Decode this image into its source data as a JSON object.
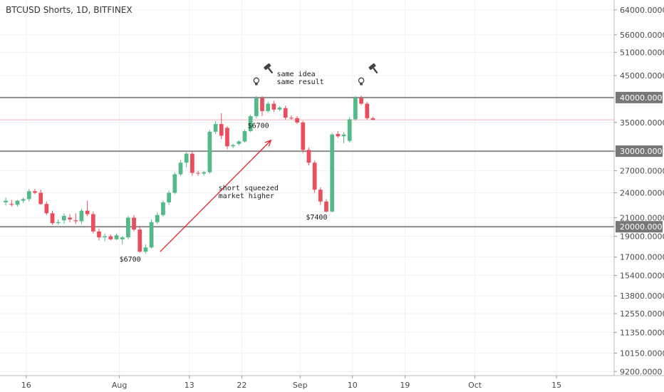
{
  "header": {
    "title": "BTCUSD Shorts, 1D, BITFINEX"
  },
  "colors": {
    "up": "#53b987",
    "down": "#eb4d5c",
    "level_line": "#8c8c8c",
    "price_line": "#f4b0b6",
    "arrow": "#e8252a",
    "badge_bg": "#777777",
    "icon": "#444444"
  },
  "chart_data": {
    "type": "candlestick",
    "y_scale": "log",
    "ylim": [
      9000,
      67500
    ],
    "y_ticks": [
      "64000.0000",
      "56000.0000",
      "51000.0000",
      "45000.0000",
      "35000.0000",
      "30000.0000",
      "27000.0000",
      "24000.0000",
      "21000.0000",
      "19000.0000",
      "17000.0000",
      "15400.0000",
      "13800.0000",
      "12550.0000",
      "11350.0000",
      "10150.0000",
      "9200.0000"
    ],
    "x_ticks": [
      {
        "label": "16",
        "date": "2021-07-16"
      },
      {
        "label": "Aug",
        "date": "2021-08-01"
      },
      {
        "label": "13",
        "date": "2021-08-13"
      },
      {
        "label": "22",
        "date": "2021-08-22"
      },
      {
        "label": "Sep",
        "date": "2021-09-01"
      },
      {
        "label": "10",
        "date": "2021-09-10"
      },
      {
        "label": "19",
        "date": "2021-09-19"
      },
      {
        "label": "Oct",
        "date": "2021-10-01"
      },
      {
        "label": "15",
        "date": "2021-10-15"
      }
    ],
    "x_range": [
      "2021-07-12",
      "2021-10-20"
    ],
    "levels": [
      {
        "value": 40000,
        "label": "40000.0000"
      },
      {
        "value": 30000,
        "label": "30000.0000"
      },
      {
        "value": 20000,
        "label": "20000.0000"
      }
    ],
    "last_price": 35500,
    "candles": [
      {
        "date": "2021-07-12",
        "open": 22800,
        "high": 23400,
        "low": 22400,
        "close": 23000
      },
      {
        "date": "2021-07-13",
        "open": 22600,
        "high": 23100,
        "low": 22300,
        "close": 22500
      },
      {
        "date": "2021-07-14",
        "open": 22500,
        "high": 23100,
        "low": 22300,
        "close": 23000
      },
      {
        "date": "2021-07-15",
        "open": 23000,
        "high": 23400,
        "low": 22700,
        "close": 23200
      },
      {
        "date": "2021-07-16",
        "open": 23200,
        "high": 24500,
        "low": 22900,
        "close": 24200
      },
      {
        "date": "2021-07-17",
        "open": 24200,
        "high": 24500,
        "low": 23800,
        "close": 24000
      },
      {
        "date": "2021-07-18",
        "open": 24000,
        "high": 24400,
        "low": 22500,
        "close": 22600
      },
      {
        "date": "2021-07-19",
        "open": 22600,
        "high": 22900,
        "low": 21300,
        "close": 21500
      },
      {
        "date": "2021-07-20",
        "open": 21500,
        "high": 21800,
        "low": 20200,
        "close": 20400
      },
      {
        "date": "2021-07-21",
        "open": 20400,
        "high": 20800,
        "low": 20200,
        "close": 20500
      },
      {
        "date": "2021-07-22",
        "open": 20700,
        "high": 21500,
        "low": 20300,
        "close": 21200
      },
      {
        "date": "2021-07-23",
        "open": 21000,
        "high": 21400,
        "low": 20500,
        "close": 20800
      },
      {
        "date": "2021-07-24",
        "open": 20700,
        "high": 21500,
        "low": 20300,
        "close": 20600
      },
      {
        "date": "2021-07-25",
        "open": 20600,
        "high": 22000,
        "low": 20300,
        "close": 21800
      },
      {
        "date": "2021-07-26",
        "open": 21800,
        "high": 23000,
        "low": 21200,
        "close": 21400
      },
      {
        "date": "2021-07-27",
        "open": 21400,
        "high": 21700,
        "low": 19300,
        "close": 19500
      },
      {
        "date": "2021-07-28",
        "open": 19500,
        "high": 19800,
        "low": 18600,
        "close": 18900
      },
      {
        "date": "2021-07-29",
        "open": 18900,
        "high": 19300,
        "low": 18500,
        "close": 19000
      },
      {
        "date": "2021-07-30",
        "open": 19000,
        "high": 19200,
        "low": 18600,
        "close": 18700
      },
      {
        "date": "2021-07-31",
        "open": 18700,
        "high": 19300,
        "low": 18600,
        "close": 19100
      },
      {
        "date": "2021-08-01",
        "open": 18700,
        "high": 19000,
        "low": 18200,
        "close": 18900
      },
      {
        "date": "2021-08-02",
        "open": 18900,
        "high": 21200,
        "low": 18700,
        "close": 21000
      },
      {
        "date": "2021-08-03",
        "open": 21000,
        "high": 21300,
        "low": 19500,
        "close": 19700
      },
      {
        "date": "2021-08-04",
        "open": 19700,
        "high": 20100,
        "low": 17400,
        "close": 17500
      },
      {
        "date": "2021-08-05",
        "open": 17500,
        "high": 18200,
        "low": 17300,
        "close": 17900
      },
      {
        "date": "2021-08-06",
        "open": 17900,
        "high": 20800,
        "low": 17800,
        "close": 20500
      },
      {
        "date": "2021-08-07",
        "open": 20500,
        "high": 21600,
        "low": 20300,
        "close": 21300
      },
      {
        "date": "2021-08-08",
        "open": 21300,
        "high": 23000,
        "low": 21100,
        "close": 22800
      },
      {
        "date": "2021-08-09",
        "open": 22800,
        "high": 24300,
        "low": 22500,
        "close": 24000
      },
      {
        "date": "2021-08-10",
        "open": 24000,
        "high": 26800,
        "low": 23800,
        "close": 26500
      },
      {
        "date": "2021-08-11",
        "open": 26500,
        "high": 28600,
        "low": 26300,
        "close": 28200
      },
      {
        "date": "2021-08-12",
        "open": 28200,
        "high": 29800,
        "low": 27500,
        "close": 29600
      },
      {
        "date": "2021-08-13",
        "open": 29600,
        "high": 29900,
        "low": 26300,
        "close": 26700
      },
      {
        "date": "2021-08-14",
        "open": 26700,
        "high": 27000,
        "low": 26300,
        "close": 26600
      },
      {
        "date": "2021-08-15",
        "open": 26600,
        "high": 27000,
        "low": 26300,
        "close": 26800
      },
      {
        "date": "2021-08-16",
        "open": 26800,
        "high": 33600,
        "low": 26600,
        "close": 33300
      },
      {
        "date": "2021-08-17",
        "open": 33300,
        "high": 35300,
        "low": 32900,
        "close": 34700
      },
      {
        "date": "2021-08-18",
        "open": 34700,
        "high": 36800,
        "low": 32000,
        "close": 32600
      },
      {
        "date": "2021-08-19",
        "open": 34000,
        "high": 34300,
        "low": 30300,
        "close": 30800
      },
      {
        "date": "2021-08-20",
        "open": 30800,
        "high": 31200,
        "low": 30500,
        "close": 31000
      },
      {
        "date": "2021-08-21",
        "open": 31200,
        "high": 31800,
        "low": 30900,
        "close": 31600
      },
      {
        "date": "2021-08-22",
        "open": 31600,
        "high": 33700,
        "low": 31400,
        "close": 33400
      },
      {
        "date": "2021-08-23",
        "open": 33400,
        "high": 36500,
        "low": 33200,
        "close": 36200
      },
      {
        "date": "2021-08-24",
        "open": 36200,
        "high": 40300,
        "low": 35800,
        "close": 39900
      },
      {
        "date": "2021-08-25",
        "open": 39900,
        "high": 40300,
        "low": 36200,
        "close": 37200
      },
      {
        "date": "2021-08-26",
        "open": 37200,
        "high": 39100,
        "low": 36900,
        "close": 38700
      },
      {
        "date": "2021-08-27",
        "open": 38700,
        "high": 39300,
        "low": 37000,
        "close": 37500
      },
      {
        "date": "2021-08-28",
        "open": 37500,
        "high": 38200,
        "low": 37200,
        "close": 37900
      },
      {
        "date": "2021-08-29",
        "open": 37800,
        "high": 38300,
        "low": 35500,
        "close": 35900
      },
      {
        "date": "2021-08-30",
        "open": 35900,
        "high": 36300,
        "low": 35500,
        "close": 35800
      },
      {
        "date": "2021-08-31",
        "open": 35800,
        "high": 36200,
        "low": 34700,
        "close": 35000
      },
      {
        "date": "2021-09-01",
        "open": 35000,
        "high": 35300,
        "low": 29700,
        "close": 30200
      },
      {
        "date": "2021-09-02",
        "open": 30200,
        "high": 30600,
        "low": 27800,
        "close": 28200
      },
      {
        "date": "2021-09-03",
        "open": 28200,
        "high": 28500,
        "low": 24000,
        "close": 24400
      },
      {
        "date": "2021-09-04",
        "open": 24400,
        "high": 24700,
        "low": 22500,
        "close": 22900
      },
      {
        "date": "2021-09-05",
        "open": 22900,
        "high": 23200,
        "low": 21600,
        "close": 21700
      },
      {
        "date": "2021-09-06",
        "open": 21700,
        "high": 33100,
        "low": 21600,
        "close": 32800
      },
      {
        "date": "2021-09-07",
        "open": 32900,
        "high": 33400,
        "low": 32200,
        "close": 32500
      },
      {
        "date": "2021-09-08",
        "open": 32500,
        "high": 33200,
        "low": 31300,
        "close": 32800
      },
      {
        "date": "2021-09-09",
        "open": 31700,
        "high": 36000,
        "low": 31400,
        "close": 35600
      },
      {
        "date": "2021-09-10",
        "open": 35600,
        "high": 40300,
        "low": 35300,
        "close": 39900
      },
      {
        "date": "2021-09-11",
        "open": 39900,
        "high": 40400,
        "low": 38400,
        "close": 38700
      },
      {
        "date": "2021-09-12",
        "open": 38700,
        "high": 39100,
        "low": 35500,
        "close": 35800
      },
      {
        "date": "2021-09-13",
        "open": 35800,
        "high": 36100,
        "low": 35400,
        "close": 35500
      }
    ],
    "annotations": [
      {
        "lines": [
          "same idea",
          "same result"
        ]
      },
      {
        "lines": [
          "$6700"
        ]
      },
      {
        "lines": [
          "short squeezed",
          "market higher"
        ]
      },
      {
        "lines": [
          "$7400"
        ]
      },
      {
        "lines": [
          "$6700"
        ]
      }
    ],
    "arrow": {
      "from": {
        "date": "2021-08-08",
        "value": 17500
      },
      "to": {
        "date": "2021-08-27",
        "value": 31800
      }
    },
    "icons": [
      {
        "name": "lightbulb-icon",
        "date": "2021-08-24",
        "value": 43500
      },
      {
        "name": "gavel-icon",
        "date": "2021-08-26",
        "value": 47000
      },
      {
        "name": "lightbulb-icon",
        "date": "2021-09-11",
        "value": 43500
      },
      {
        "name": "gavel-icon",
        "date": "2021-09-13",
        "value": 47000
      }
    ]
  }
}
